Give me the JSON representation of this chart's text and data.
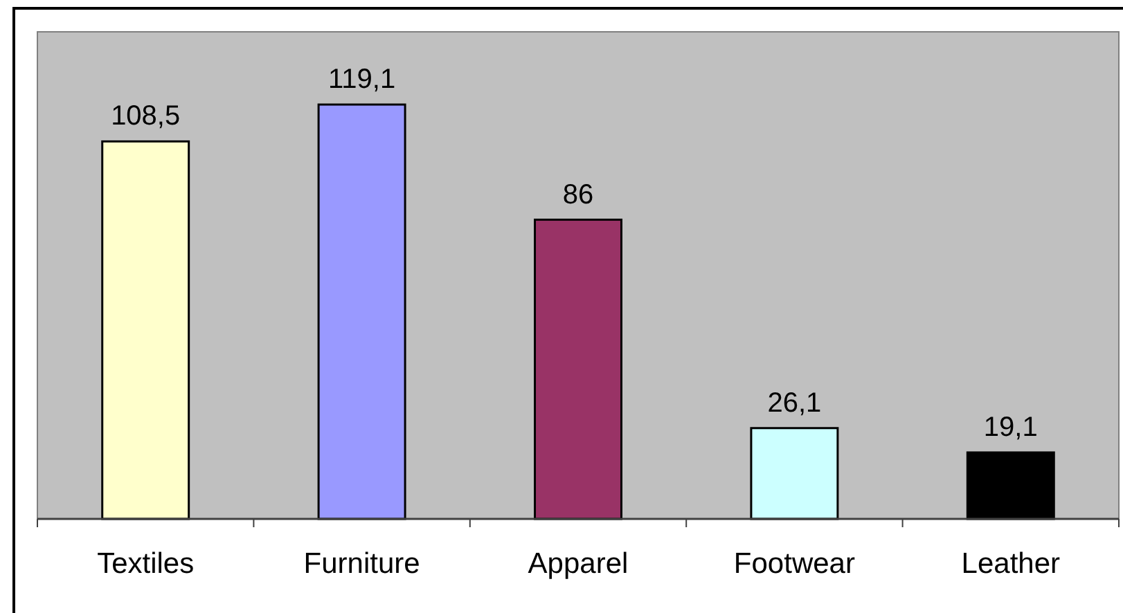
{
  "chart_data": {
    "type": "bar",
    "categories": [
      "Textiles",
      "Furniture",
      "Apparel",
      "Footwear",
      "Leather"
    ],
    "values": [
      108.5,
      119.1,
      86,
      26.1,
      19.1
    ],
    "colors": [
      "#ffffcc",
      "#9999ff",
      "#993366",
      "#ccffff",
      "#000000"
    ],
    "value_labels": [
      "108,5",
      "119,1",
      "86",
      "26,1",
      "19,1"
    ],
    "ylim": [
      0,
      140
    ],
    "tick_labels": "x"
  }
}
